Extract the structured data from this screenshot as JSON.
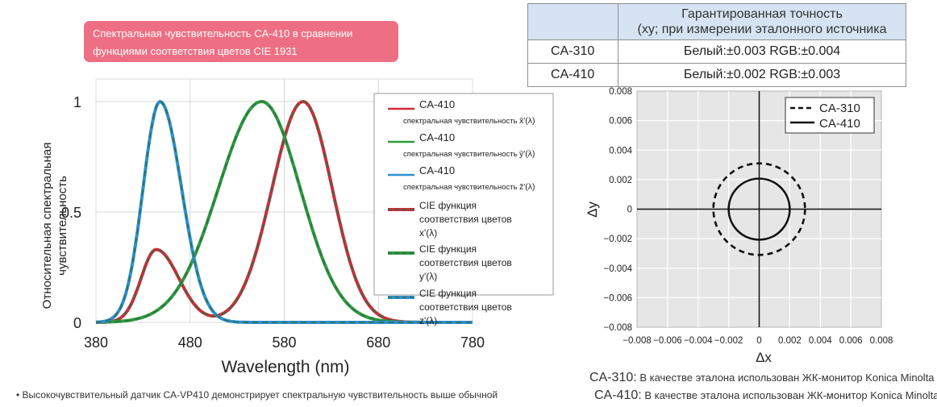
{
  "banner": {
    "line1": "Спектральная чувствительность CA-410 в сравнении",
    "line2": "функциями соответствия цветов CIE 1931"
  },
  "accuracy_table": {
    "header_line1": "Гарантированная точность",
    "header_line2": "(xy; при измерении эталонного источника",
    "rows": [
      {
        "model": "CA-310",
        "value": "Белый:±0.003 RGB:±0.004"
      },
      {
        "model": "CA-410",
        "value": "Белый:±0.002 RGB:±0.003"
      }
    ]
  },
  "chart_data": [
    {
      "type": "line",
      "xlabel": "Wavelength  (nm)",
      "ylabel_line1": "Относительная спектральная",
      "ylabel_line2": "чувствительность",
      "xlim": [
        380,
        780
      ],
      "ylim": [
        0,
        1.08
      ],
      "x_ticks": [
        380,
        480,
        580,
        680,
        780
      ],
      "x_tick_labels": [
        "380",
        "480",
        "580",
        "680",
        "780"
      ],
      "y_ticks": [
        0,
        0.5,
        1
      ],
      "y_tick_labels": [
        "0",
        "0.5",
        "1"
      ],
      "colors": {
        "red": "#cc2e3a",
        "green": "#2e9a3e",
        "blue": "#2f8fd0",
        "cie": "#2f6f45"
      },
      "series": [
        {
          "name": "x_bar",
          "color": "red",
          "components": [
            {
              "amp": 1.0,
              "mu": 600,
              "sl": 33,
              "sr": 31
            },
            {
              "amp": 0.33,
              "mu": 444,
              "sl": 16,
              "sr": 24
            }
          ]
        },
        {
          "name": "y_bar",
          "color": "green",
          "components": [
            {
              "amp": 1.0,
              "mu": 556,
              "sl": 46,
              "sr": 41
            }
          ]
        },
        {
          "name": "z_bar",
          "color": "blue",
          "components": [
            {
              "amp": 1.0,
              "mu": 448,
              "sl": 18,
              "sr": 23
            }
          ]
        }
      ],
      "legend": [
        {
          "color": "red",
          "style": "solid",
          "title": "CA-410",
          "sub": "спектральная чувствительность",
          "symbol": "x̄'(λ)"
        },
        {
          "color": "green",
          "style": "solid",
          "title": "CA-410",
          "sub": "спектральная чувствительность",
          "symbol": "ȳ'(λ)"
        },
        {
          "color": "blue",
          "style": "solid",
          "title": "CA-410",
          "sub": "спектральная чувствительность",
          "symbol": "z̄'(λ)"
        },
        {
          "color": "red",
          "style": "cie",
          "line1": "CIE функция",
          "line2": "соответствия цветов",
          "line3": "x'(λ)"
        },
        {
          "color": "green",
          "style": "cie",
          "line1": "CIE функция",
          "line2": "соответствия цветов",
          "line3": "y'(λ)"
        },
        {
          "color": "blue",
          "style": "cie",
          "line1": "CIE функция",
          "line2": "соответствия цветов",
          "line3": "z'(λ)"
        }
      ]
    },
    {
      "type": "scatter",
      "xlabel": "Δx",
      "ylabel": "Δy",
      "xlim": [
        -0.008,
        0.008
      ],
      "ylim": [
        -0.008,
        0.008
      ],
      "ticks": [
        -0.008,
        -0.006,
        -0.004,
        -0.002,
        0,
        0.002,
        0.004,
        0.006,
        0.008
      ],
      "tick_labels": [
        "−0.008",
        "−0.006",
        "−0.004",
        "−0.002",
        "0",
        "0.002",
        "0.004",
        "0.006",
        "0.008"
      ],
      "series": [
        {
          "name": "CA-310",
          "style": "dashed",
          "radius": 0.003
        },
        {
          "name": "CA-410",
          "style": "solid",
          "radius": 0.002
        }
      ]
    }
  ],
  "notes": {
    "bullet": "• Высокочувствительный датчик CA-VP410 демонстрирует спектральную чувствительность выше обычной",
    "ca310_model": "CA-310:",
    "ca310_text": " В качестве эталона использован ЖК-монитор Konica Minolta",
    "ca410_model": "CA-410:",
    "ca410_text": " В качестве эталона использован ЖК-монитор Konica Minolta"
  }
}
